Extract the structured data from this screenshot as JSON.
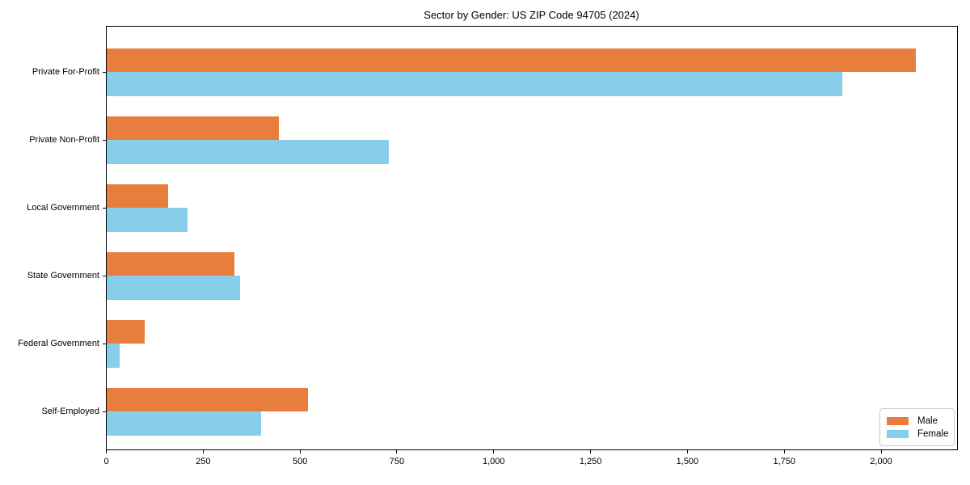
{
  "chart_data": {
    "type": "bar",
    "orientation": "horizontal",
    "title": "Sector by Gender: US ZIP Code 94705 (2024)",
    "categories": [
      "Private For-Profit",
      "Private Non-Profit",
      "Local Government",
      "State Government",
      "Federal Government",
      "Self-Employed"
    ],
    "series": [
      {
        "name": "Male",
        "color": "#e87e3d",
        "values": [
          2090,
          445,
          160,
          330,
          100,
          520
        ]
      },
      {
        "name": "Female",
        "color": "#87ceeb",
        "values": [
          1900,
          730,
          210,
          345,
          35,
          400
        ]
      }
    ],
    "xlabel": "",
    "ylabel": "",
    "xlim": [
      0,
      2195
    ],
    "x_ticks": [
      0,
      250,
      500,
      750,
      1000,
      1250,
      1500,
      1750,
      2000
    ],
    "x_tick_labels": [
      "0",
      "250",
      "500",
      "750",
      "1,000",
      "1,250",
      "1,500",
      "1,750",
      "2,000"
    ],
    "grid": false,
    "legend": {
      "position": "lower right",
      "entries": [
        "Male",
        "Female"
      ]
    }
  },
  "colors": {
    "male": "#e87e3d",
    "female": "#87ceeb",
    "spine": "#000000",
    "legend_border": "#cccccc",
    "background": "#ffffff"
  }
}
